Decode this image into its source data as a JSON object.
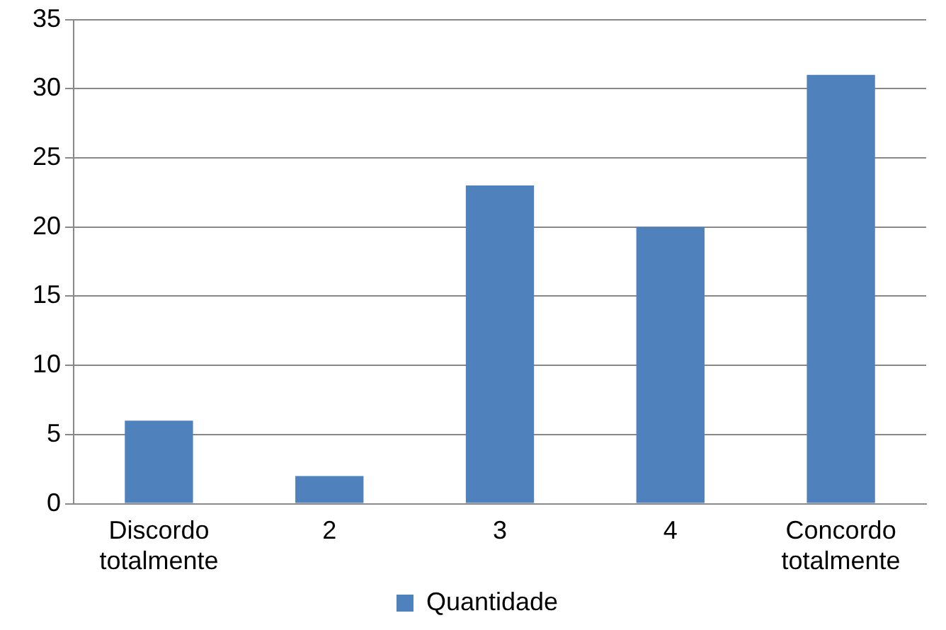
{
  "chart_data": {
    "type": "bar",
    "categories": [
      "Discordo totalmente",
      "2",
      "3",
      "4",
      "Concordo totalmente"
    ],
    "series": [
      {
        "name": "Quantidade",
        "color": "#4f81bd",
        "values": [
          6,
          2,
          23,
          20,
          31
        ]
      }
    ],
    "ylim": [
      0,
      35
    ],
    "yticks": [
      0,
      5,
      10,
      15,
      20,
      25,
      30,
      35
    ],
    "grid": "y",
    "legend": "bottom"
  }
}
